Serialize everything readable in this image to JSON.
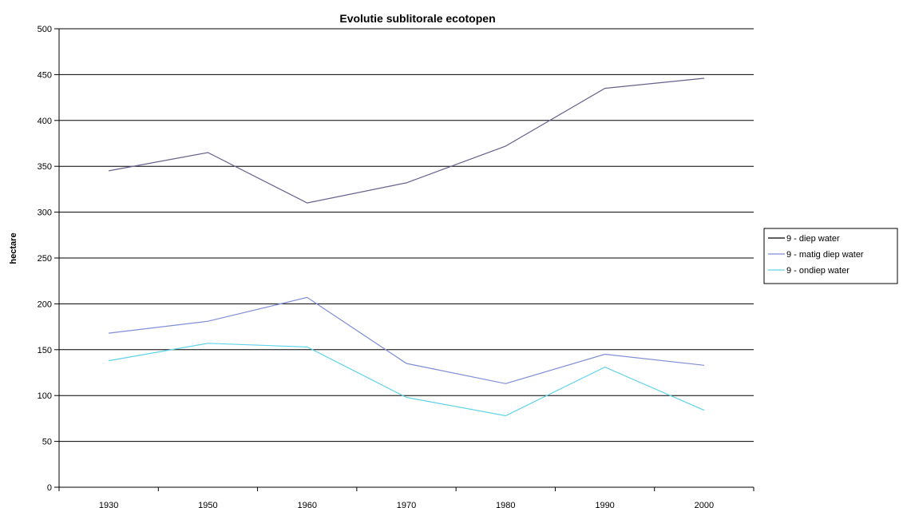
{
  "chart_data": {
    "type": "line",
    "title": "Evolutie sublitorale ecotopen",
    "xlabel": "",
    "ylabel": "hectare",
    "categories": [
      "1930",
      "1950",
      "1960",
      "1970",
      "1980",
      "1990",
      "2000"
    ],
    "ylim": [
      0,
      500
    ],
    "yticks": [
      0,
      50,
      100,
      150,
      200,
      250,
      300,
      350,
      400,
      450,
      500
    ],
    "grid": true,
    "legend_position": "right",
    "series": [
      {
        "name": "9 - diep water",
        "color": "#6a5f8c",
        "values": [
          345,
          365,
          310,
          332,
          372,
          435,
          446
        ]
      },
      {
        "name": "9 - matig diep water",
        "color": "#7f8fd6",
        "values": [
          168,
          181,
          207,
          135,
          113,
          145,
          133
        ]
      },
      {
        "name": "9 - ondiep water",
        "color": "#5fd3e8",
        "values": [
          138,
          157,
          153,
          98,
          78,
          131,
          84
        ]
      }
    ],
    "legend_line_color": "#000000"
  }
}
